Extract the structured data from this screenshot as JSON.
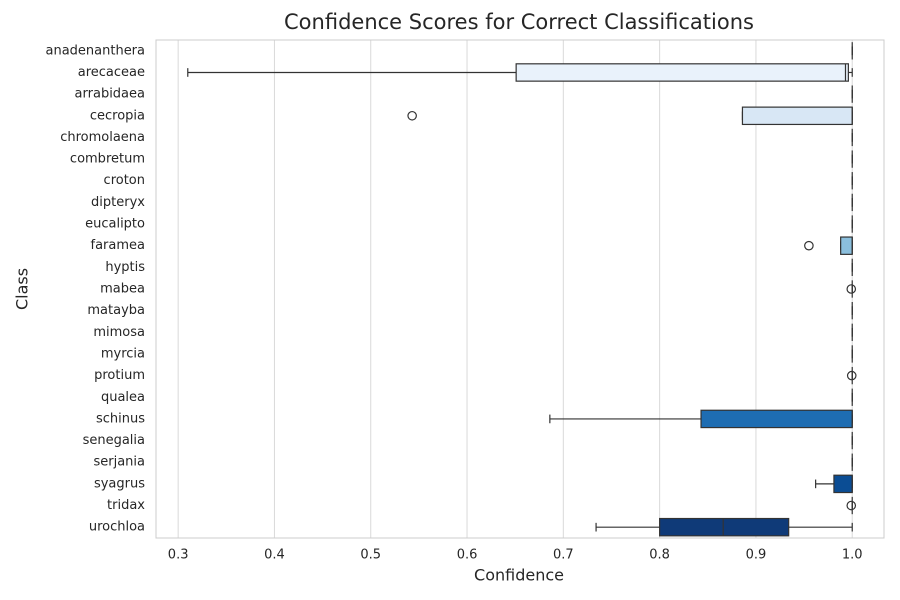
{
  "chart_data": {
    "type": "boxplot",
    "orientation": "horizontal",
    "title": "Confidence Scores for Correct Classifications",
    "x_label": "Confidence",
    "y_label": "Class",
    "categories": [
      "anadenanthera",
      "arecaceae",
      "arrabidaea",
      "cecropia",
      "chromolaena",
      "combretum",
      "croton",
      "dipteryx",
      "eucalipto",
      "faramea",
      "hyptis",
      "mabea",
      "matayba",
      "mimosa",
      "myrcia",
      "protium",
      "qualea",
      "schinus",
      "senegalia",
      "serjania",
      "syagrus",
      "tridax",
      "urochloa"
    ],
    "colors": [
      "#f0f6fd",
      "#e9f2fb",
      "#e2edf8",
      "#d8e7f5",
      "#cfe1f2",
      "#c6dbef",
      "#b9d6ea",
      "#abcfe6",
      "#9cc7e1",
      "#8bbfdd",
      "#79b5d9",
      "#68acd5",
      "#58a1cf",
      "#4a97c9",
      "#3d8cc4",
      "#3281bd",
      "#2777b8",
      "#1e6db2",
      "#1763aa",
      "#1058a1",
      "#0b4d94",
      "#084287",
      "#0f3a78"
    ],
    "boxes": [
      {
        "whislo": 1,
        "q1": 1,
        "med": 1,
        "q3": 1,
        "whishi": 1,
        "fliers": []
      },
      {
        "whislo": 0.31,
        "q1": 0.651,
        "med": 0.993,
        "q3": 0.996,
        "whishi": 1,
        "fliers": []
      },
      {
        "whislo": 1,
        "q1": 1,
        "med": 1,
        "q3": 1,
        "whishi": 1,
        "fliers": []
      },
      {
        "whislo": 0.886,
        "q1": 0.886,
        "med": 1,
        "q3": 1,
        "whishi": 1,
        "fliers": [
          0.543
        ]
      },
      {
        "whislo": 1,
        "q1": 1,
        "med": 1,
        "q3": 1,
        "whishi": 1,
        "fliers": []
      },
      {
        "whislo": 1,
        "q1": 1,
        "med": 1,
        "q3": 1,
        "whishi": 1,
        "fliers": []
      },
      {
        "whislo": 1,
        "q1": 1,
        "med": 1,
        "q3": 1,
        "whishi": 1,
        "fliers": []
      },
      {
        "whislo": 1,
        "q1": 1,
        "med": 1,
        "q3": 1,
        "whishi": 1,
        "fliers": []
      },
      {
        "whislo": 1,
        "q1": 1,
        "med": 1,
        "q3": 1,
        "whishi": 1,
        "fliers": []
      },
      {
        "whislo": 0.988,
        "q1": 0.988,
        "med": 1,
        "q3": 1,
        "whishi": 1,
        "fliers": [
          0.955
        ]
      },
      {
        "whislo": 1,
        "q1": 1,
        "med": 1,
        "q3": 1,
        "whishi": 1,
        "fliers": []
      },
      {
        "whislo": 1,
        "q1": 1,
        "med": 1,
        "q3": 1,
        "whishi": 1,
        "fliers": [
          0.999
        ]
      },
      {
        "whislo": 1,
        "q1": 1,
        "med": 1,
        "q3": 1,
        "whishi": 1,
        "fliers": []
      },
      {
        "whislo": 1,
        "q1": 1,
        "med": 1,
        "q3": 1,
        "whishi": 1,
        "fliers": []
      },
      {
        "whislo": 1,
        "q1": 1,
        "med": 1,
        "q3": 1,
        "whishi": 1,
        "fliers": []
      },
      {
        "whislo": 1,
        "q1": 1,
        "med": 1,
        "q3": 1,
        "whishi": 1,
        "fliers": [
          0.9995
        ]
      },
      {
        "whislo": 1,
        "q1": 1,
        "med": 1,
        "q3": 1,
        "whishi": 1,
        "fliers": []
      },
      {
        "whislo": 0.686,
        "q1": 0.843,
        "med": 1,
        "q3": 1,
        "whishi": 1,
        "fliers": []
      },
      {
        "whislo": 1,
        "q1": 1,
        "med": 1,
        "q3": 1,
        "whishi": 1,
        "fliers": []
      },
      {
        "whislo": 1,
        "q1": 1,
        "med": 1,
        "q3": 1,
        "whishi": 1,
        "fliers": []
      },
      {
        "whislo": 0.962,
        "q1": 0.981,
        "med": 1,
        "q3": 1,
        "whishi": 1,
        "fliers": []
      },
      {
        "whislo": 1,
        "q1": 1,
        "med": 1,
        "q3": 1,
        "whishi": 1,
        "fliers": [
          0.999
        ]
      },
      {
        "whislo": 0.734,
        "q1": 0.8,
        "med": 0.866,
        "q3": 0.934,
        "whishi": 1,
        "fliers": []
      }
    ],
    "xlim": [
      0.277,
      1.033
    ],
    "xticks": [
      0.3,
      0.4,
      0.5,
      0.6,
      0.7,
      0.8,
      0.9,
      {
        "value": 1,
        "label": "1.0"
      }
    ],
    "grid": true
  }
}
